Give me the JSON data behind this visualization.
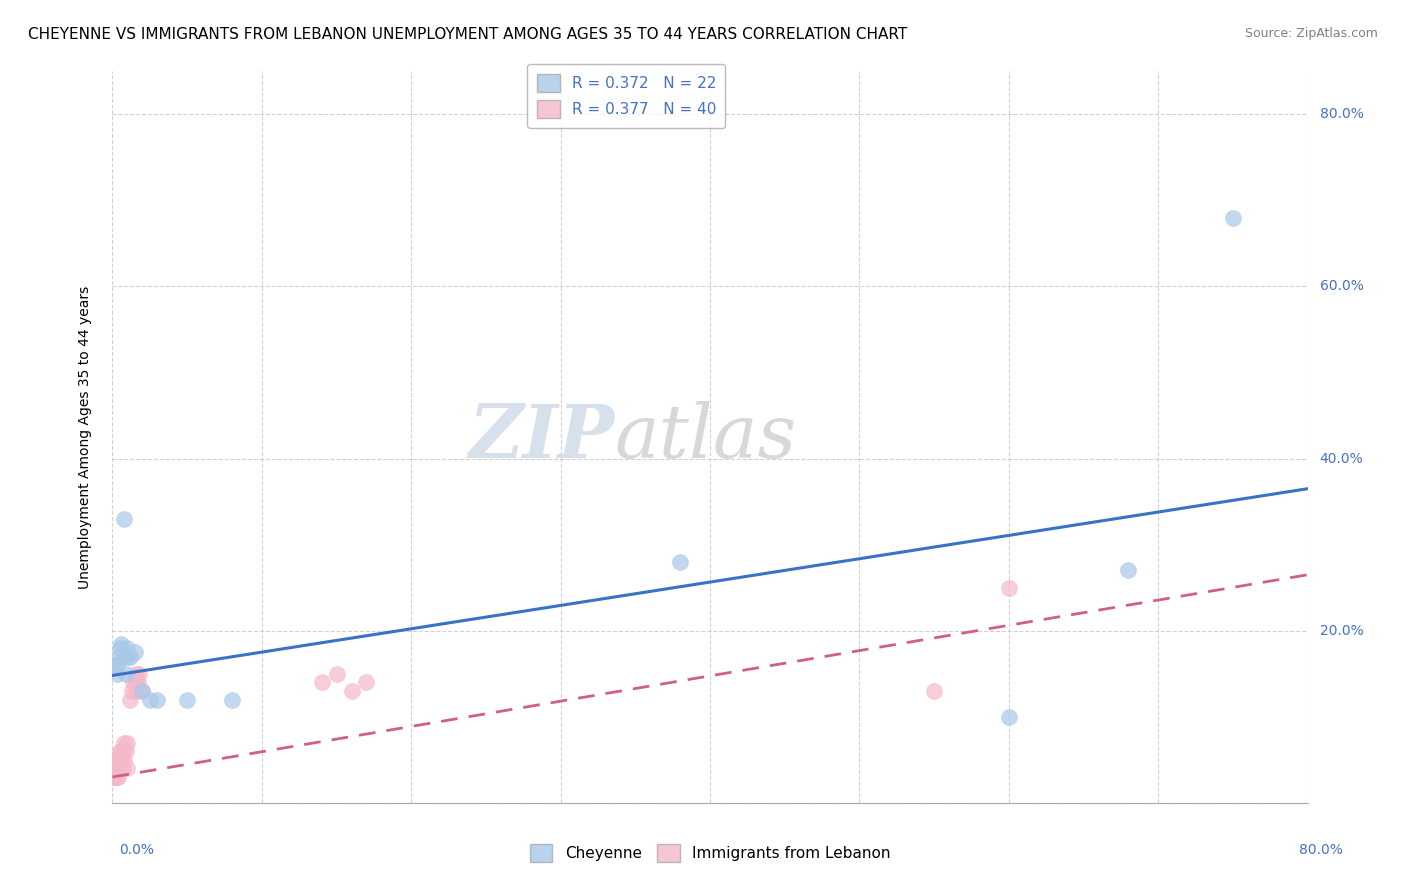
{
  "title": "CHEYENNE VS IMMIGRANTS FROM LEBANON UNEMPLOYMENT AMONG AGES 35 TO 44 YEARS CORRELATION CHART",
  "source": "Source: ZipAtlas.com",
  "ylabel": "Unemployment Among Ages 35 to 44 years",
  "legend_entry1": "R = 0.372   N = 22",
  "legend_entry2": "R = 0.377   N = 40",
  "legend_label1": "Cheyenne",
  "legend_label2": "Immigrants from Lebanon",
  "cheyenne_color": "#a8c8e8",
  "lebanon_color": "#f4b8c8",
  "blue_line_color": "#3a72c4",
  "pink_line_color": "#d06080",
  "watermark_zip": "ZIP",
  "watermark_atlas": "atlas",
  "cheyenne_x": [
    0.002,
    0.003,
    0.003,
    0.004,
    0.005,
    0.006,
    0.007,
    0.008,
    0.009,
    0.01,
    0.01,
    0.012,
    0.015,
    0.02,
    0.025,
    0.03,
    0.05,
    0.08,
    0.38,
    0.6,
    0.68,
    0.75
  ],
  "cheyenne_y": [
    0.16,
    0.15,
    0.16,
    0.17,
    0.18,
    0.185,
    0.17,
    0.33,
    0.15,
    0.17,
    0.18,
    0.17,
    0.175,
    0.13,
    0.12,
    0.12,
    0.12,
    0.12,
    0.28,
    0.1,
    0.27,
    0.68
  ],
  "lebanon_x": [
    0.001,
    0.001,
    0.001,
    0.002,
    0.002,
    0.002,
    0.003,
    0.003,
    0.003,
    0.003,
    0.004,
    0.004,
    0.005,
    0.005,
    0.005,
    0.006,
    0.006,
    0.006,
    0.007,
    0.007,
    0.008,
    0.008,
    0.009,
    0.01,
    0.01,
    0.012,
    0.013,
    0.014,
    0.015,
    0.016,
    0.016,
    0.017,
    0.018,
    0.02,
    0.14,
    0.15,
    0.16,
    0.17,
    0.55,
    0.6
  ],
  "lebanon_y": [
    0.04,
    0.05,
    0.03,
    0.04,
    0.05,
    0.03,
    0.04,
    0.05,
    0.03,
    0.04,
    0.03,
    0.05,
    0.04,
    0.06,
    0.05,
    0.04,
    0.06,
    0.05,
    0.04,
    0.06,
    0.05,
    0.07,
    0.06,
    0.04,
    0.07,
    0.12,
    0.13,
    0.14,
    0.13,
    0.14,
    0.15,
    0.14,
    0.15,
    0.13,
    0.14,
    0.15,
    0.13,
    0.14,
    0.13,
    0.25
  ],
  "blue_line_x": [
    0.0,
    0.8
  ],
  "blue_line_y": [
    0.148,
    0.365
  ],
  "pink_line_x": [
    0.0,
    0.8
  ],
  "pink_line_y": [
    0.03,
    0.265
  ],
  "xlim": [
    0.0,
    0.8
  ],
  "ylim": [
    0.0,
    0.85
  ],
  "yticks": [
    0.0,
    0.2,
    0.4,
    0.6,
    0.8
  ],
  "ytick_labels": [
    "",
    "20.0%",
    "40.0%",
    "60.0%",
    "80.0%"
  ],
  "xtick_positions": [
    0.0,
    0.1,
    0.2,
    0.3,
    0.4,
    0.5,
    0.6,
    0.7,
    0.8
  ],
  "grid_color": "#cccccc",
  "background_color": "#ffffff",
  "title_fontsize": 11,
  "axis_fontsize": 10,
  "marker_size": 130
}
